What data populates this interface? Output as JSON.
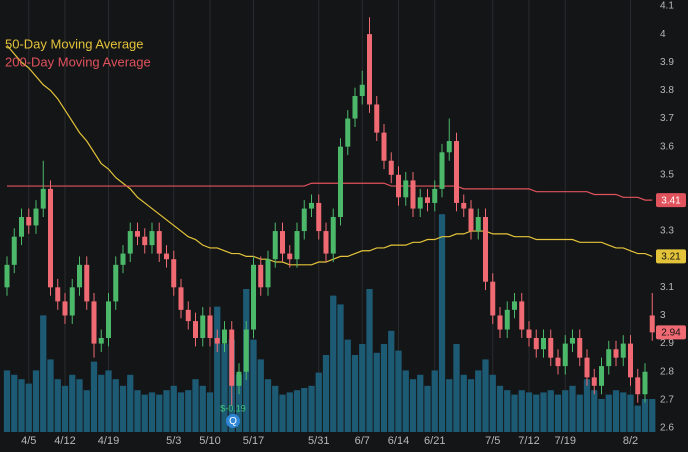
{
  "chart_data": {
    "type": "candlestick",
    "categories": [
      null,
      null,
      null,
      "4/5",
      null,
      null,
      null,
      null,
      "4/12",
      null,
      null,
      null,
      null,
      null,
      "4/19",
      null,
      null,
      null,
      null,
      null,
      null,
      null,
      null,
      "5/3",
      null,
      null,
      null,
      null,
      "5/10",
      null,
      null,
      null,
      null,
      null,
      "5/17",
      null,
      null,
      null,
      null,
      null,
      null,
      null,
      null,
      "5/31",
      null,
      null,
      null,
      null,
      null,
      "6/7",
      null,
      null,
      null,
      null,
      "6/14",
      null,
      null,
      null,
      null,
      "6/21",
      null,
      null,
      null,
      null,
      null,
      null,
      null,
      "7/5",
      null,
      null,
      null,
      null,
      "7/12",
      null,
      null,
      null,
      null,
      "7/19",
      null,
      null,
      null,
      null,
      null,
      null,
      null,
      null,
      "8/2",
      null,
      null,
      null
    ],
    "open": [
      3.1,
      3.18,
      3.28,
      3.35,
      3.32,
      3.38,
      3.45,
      3.1,
      3.05,
      3.0,
      3.1,
      3.18,
      3.05,
      2.9,
      2.92,
      3.05,
      3.18,
      3.22,
      3.3,
      3.28,
      3.25,
      3.3,
      3.22,
      3.2,
      3.1,
      3.02,
      2.98,
      2.92,
      3.0,
      2.92,
      2.9,
      2.95,
      2.75,
      2.8,
      2.95,
      3.18,
      3.1,
      3.2,
      3.3,
      3.22,
      3.2,
      3.3,
      3.38,
      3.4,
      3.3,
      3.22,
      3.35,
      3.6,
      3.7,
      3.78,
      4.0,
      3.75,
      3.65,
      3.55,
      3.5,
      3.42,
      3.48,
      3.38,
      3.42,
      3.4,
      3.45,
      3.58,
      3.62,
      3.4,
      3.38,
      3.3,
      3.35,
      3.12,
      3.0,
      2.95,
      3.02,
      3.05,
      2.95,
      2.92,
      2.88,
      2.92,
      2.85,
      2.82,
      2.9,
      2.92,
      2.85,
      2.78,
      2.75,
      2.82,
      2.88,
      2.85,
      2.9,
      2.78,
      2.72,
      3.0
    ],
    "high": [
      3.21,
      3.31,
      3.38,
      3.38,
      3.41,
      3.55,
      3.48,
      3.13,
      3.08,
      3.13,
      3.21,
      3.21,
      3.08,
      2.95,
      3.08,
      3.21,
      3.25,
      3.33,
      3.33,
      3.31,
      3.33,
      3.33,
      3.25,
      3.23,
      3.13,
      3.05,
      3.01,
      3.03,
      3.03,
      2.95,
      2.98,
      2.98,
      2.83,
      2.98,
      3.21,
      3.21,
      3.23,
      3.33,
      3.33,
      3.25,
      3.33,
      3.41,
      3.43,
      3.43,
      3.33,
      3.38,
      3.63,
      3.73,
      3.81,
      3.87,
      4.06,
      3.78,
      3.68,
      3.58,
      3.53,
      3.51,
      3.51,
      3.45,
      3.45,
      3.48,
      3.61,
      3.7,
      3.65,
      3.43,
      3.41,
      3.38,
      3.38,
      3.15,
      3.03,
      3.05,
      3.08,
      3.08,
      2.98,
      2.95,
      2.95,
      2.95,
      2.88,
      2.93,
      2.95,
      2.95,
      2.88,
      2.81,
      2.85,
      2.91,
      2.91,
      2.93,
      2.93,
      2.81,
      2.83,
      3.08
    ],
    "low": [
      3.07,
      3.15,
      3.25,
      3.29,
      3.29,
      3.35,
      3.07,
      3.02,
      2.97,
      2.97,
      3.07,
      3.02,
      2.85,
      2.87,
      2.89,
      3.02,
      3.15,
      3.19,
      3.25,
      3.22,
      3.22,
      3.19,
      3.17,
      3.07,
      2.99,
      2.95,
      2.89,
      2.89,
      2.89,
      2.87,
      2.87,
      2.68,
      2.72,
      2.77,
      2.92,
      3.07,
      3.07,
      3.17,
      3.19,
      3.17,
      3.17,
      3.27,
      3.35,
      3.27,
      3.19,
      3.19,
      3.32,
      3.57,
      3.67,
      3.75,
      3.72,
      3.62,
      3.52,
      3.47,
      3.39,
      3.39,
      3.35,
      3.35,
      3.37,
      3.37,
      3.42,
      3.55,
      3.37,
      3.35,
      3.27,
      3.27,
      3.09,
      2.97,
      2.92,
      2.92,
      2.99,
      2.92,
      2.89,
      2.85,
      2.85,
      2.82,
      2.79,
      2.79,
      2.87,
      2.82,
      2.75,
      2.72,
      2.72,
      2.79,
      2.82,
      2.82,
      2.75,
      2.69,
      2.69,
      2.91
    ],
    "close": [
      3.18,
      3.28,
      3.35,
      3.32,
      3.38,
      3.45,
      3.1,
      3.05,
      3.0,
      3.1,
      3.18,
      3.05,
      2.9,
      2.92,
      3.05,
      3.18,
      3.22,
      3.3,
      3.28,
      3.25,
      3.3,
      3.22,
      3.2,
      3.1,
      3.02,
      2.98,
      2.92,
      3.0,
      2.92,
      2.9,
      2.95,
      2.75,
      2.8,
      2.95,
      3.18,
      3.1,
      3.2,
      3.3,
      3.22,
      3.2,
      3.3,
      3.38,
      3.4,
      3.3,
      3.22,
      3.35,
      3.6,
      3.7,
      3.78,
      3.82,
      3.75,
      3.65,
      3.55,
      3.5,
      3.42,
      3.48,
      3.38,
      3.42,
      3.4,
      3.45,
      3.58,
      3.62,
      3.4,
      3.38,
      3.3,
      3.35,
      3.12,
      3.0,
      2.95,
      3.02,
      3.05,
      2.95,
      2.92,
      2.88,
      2.92,
      2.85,
      2.82,
      2.9,
      2.92,
      2.85,
      2.78,
      2.75,
      2.82,
      2.88,
      2.85,
      2.9,
      2.78,
      2.72,
      2.8,
      2.94
    ],
    "up_color": "#4cb86a",
    "down_color": "#ef6a73",
    "volume": {
      "color": "#1d5b75",
      "vlim": [
        0,
        100
      ],
      "values": [
        28,
        26,
        24,
        22,
        28,
        53,
        33,
        24,
        21,
        26,
        24,
        19,
        32,
        26,
        28,
        24,
        21,
        26,
        19,
        17,
        18,
        17,
        19,
        21,
        18,
        19,
        24,
        21,
        18,
        57,
        40,
        42,
        26,
        65,
        42,
        33,
        24,
        21,
        17,
        18,
        19,
        20,
        21,
        27,
        35,
        62,
        58,
        42,
        35,
        40,
        65,
        36,
        40,
        46,
        37,
        28,
        24,
        26,
        21,
        28,
        99,
        24,
        40,
        26,
        24,
        28,
        33,
        26,
        21,
        19,
        17,
        19,
        18,
        17,
        18,
        19,
        17,
        19,
        21,
        17,
        24,
        19,
        15,
        17,
        19,
        18,
        17,
        12,
        15,
        15
      ]
    },
    "series": [
      {
        "name": "50-Day Moving Average",
        "color": "#e3c33a",
        "values": [
          3.96,
          3.93,
          3.9,
          3.88,
          3.85,
          3.82,
          3.8,
          3.77,
          3.73,
          3.69,
          3.65,
          3.62,
          3.58,
          3.54,
          3.52,
          3.49,
          3.47,
          3.45,
          3.42,
          3.4,
          3.38,
          3.36,
          3.34,
          3.32,
          3.3,
          3.28,
          3.27,
          3.25,
          3.24,
          3.24,
          3.23,
          3.22,
          3.22,
          3.21,
          3.21,
          3.2,
          3.2,
          3.19,
          3.19,
          3.18,
          3.18,
          3.18,
          3.18,
          3.19,
          3.19,
          3.2,
          3.21,
          3.21,
          3.22,
          3.23,
          3.23,
          3.24,
          3.24,
          3.25,
          3.25,
          3.25,
          3.26,
          3.26,
          3.27,
          3.27,
          3.28,
          3.28,
          3.29,
          3.29,
          3.3,
          3.3,
          3.3,
          3.29,
          3.29,
          3.29,
          3.28,
          3.28,
          3.28,
          3.27,
          3.27,
          3.27,
          3.27,
          3.27,
          3.27,
          3.26,
          3.26,
          3.26,
          3.26,
          3.25,
          3.24,
          3.24,
          3.23,
          3.22,
          3.22,
          3.21
        ]
      },
      {
        "name": "200-Day Moving Average",
        "color": "#e0525c",
        "values": [
          3.46,
          3.46,
          3.46,
          3.46,
          3.46,
          3.46,
          3.46,
          3.46,
          3.46,
          3.46,
          3.46,
          3.46,
          3.46,
          3.46,
          3.46,
          3.46,
          3.46,
          3.46,
          3.46,
          3.46,
          3.46,
          3.46,
          3.46,
          3.46,
          3.46,
          3.46,
          3.46,
          3.46,
          3.46,
          3.46,
          3.46,
          3.46,
          3.46,
          3.46,
          3.46,
          3.46,
          3.46,
          3.46,
          3.46,
          3.46,
          3.46,
          3.46,
          3.47,
          3.47,
          3.47,
          3.47,
          3.47,
          3.47,
          3.47,
          3.47,
          3.47,
          3.47,
          3.47,
          3.46,
          3.46,
          3.46,
          3.46,
          3.46,
          3.46,
          3.46,
          3.46,
          3.46,
          3.46,
          3.45,
          3.45,
          3.45,
          3.45,
          3.45,
          3.45,
          3.45,
          3.45,
          3.45,
          3.45,
          3.44,
          3.44,
          3.44,
          3.44,
          3.44,
          3.44,
          3.44,
          3.44,
          3.43,
          3.43,
          3.43,
          3.43,
          3.42,
          3.42,
          3.42,
          3.41,
          3.41
        ]
      }
    ],
    "ylim": [
      2.6,
      4.1
    ],
    "yticks": [
      2.6,
      2.7,
      2.8,
      2.9,
      3,
      3.1,
      3.2,
      3.3,
      3.4,
      3.5,
      3.6,
      3.7,
      3.8,
      3.9,
      4,
      4.1
    ],
    "grid": true,
    "annotations": [
      {
        "text": "$-0.19",
        "icon": "Q"
      }
    ]
  }
}
